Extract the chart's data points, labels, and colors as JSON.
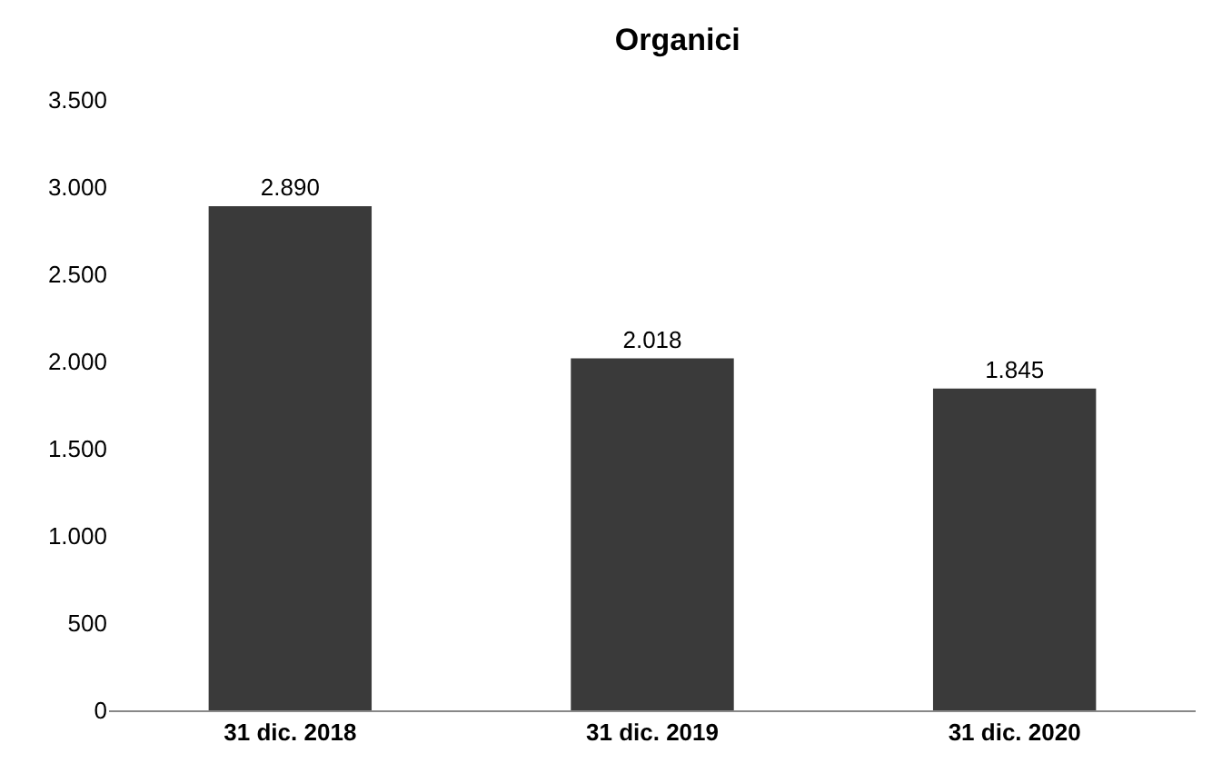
{
  "chart_data": {
    "type": "bar",
    "title": "Organici",
    "categories": [
      "31 dic. 2018",
      "31 dic. 2019",
      "31 dic. 2020"
    ],
    "values": [
      2890,
      2018,
      1845
    ],
    "value_labels": [
      "2.890",
      "2.018",
      "1.845"
    ],
    "color": "#3a3a3a",
    "ylim": [
      0,
      3500
    ],
    "yticks": [
      {
        "value": 0,
        "label": "0"
      },
      {
        "value": 500,
        "label": "500"
      },
      {
        "value": 1000,
        "label": "1.000"
      },
      {
        "value": 1500,
        "label": "1.500"
      },
      {
        "value": 2000,
        "label": "2.000"
      },
      {
        "value": 2500,
        "label": "2.500"
      },
      {
        "value": 3000,
        "label": "3.000"
      },
      {
        "value": 3500,
        "label": "3.500"
      }
    ],
    "grid": false
  }
}
